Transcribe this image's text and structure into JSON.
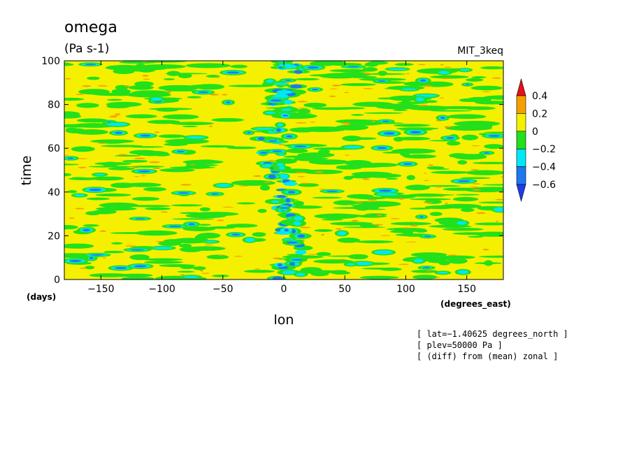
{
  "chart_data": {
    "type": "heatmap",
    "title": "omega",
    "subtitle": "(Pa s-1)",
    "label_top_right": "MIT_3keq",
    "xlabel": "lon",
    "ylabel": "time",
    "x_units": "(degrees_east)",
    "y_units": "(days)",
    "xlim": [
      -180,
      180
    ],
    "ylim": [
      0,
      100
    ],
    "x_ticks": [
      -150,
      -100,
      -50,
      0,
      50,
      100,
      150
    ],
    "x_tick_labels": [
      "−150",
      "−100",
      "−50",
      "0",
      "50",
      "100",
      "150"
    ],
    "y_ticks": [
      0,
      20,
      40,
      60,
      80,
      100
    ],
    "y_tick_labels": [
      "0",
      "20",
      "40",
      "60",
      "80",
      "100"
    ],
    "colorbar": {
      "levels": [
        0.4,
        0.2,
        0,
        -0.2,
        -0.4,
        -0.6
      ],
      "level_labels": [
        "0.4",
        "0.2",
        "0",
        "−0.2",
        "−0.4",
        "−0.6"
      ],
      "colors": [
        "#e8101a",
        "#f5a000",
        "#f5f000",
        "#22e01a",
        "#00e8f5",
        "#1e78f0",
        "#1e3ce8"
      ]
    },
    "annotations": [
      "[ lat=−1.40625 degrees_north ]",
      "[ plev=50000 Pa ]",
      "[ (diff) from (mean) zonal ]"
    ]
  }
}
